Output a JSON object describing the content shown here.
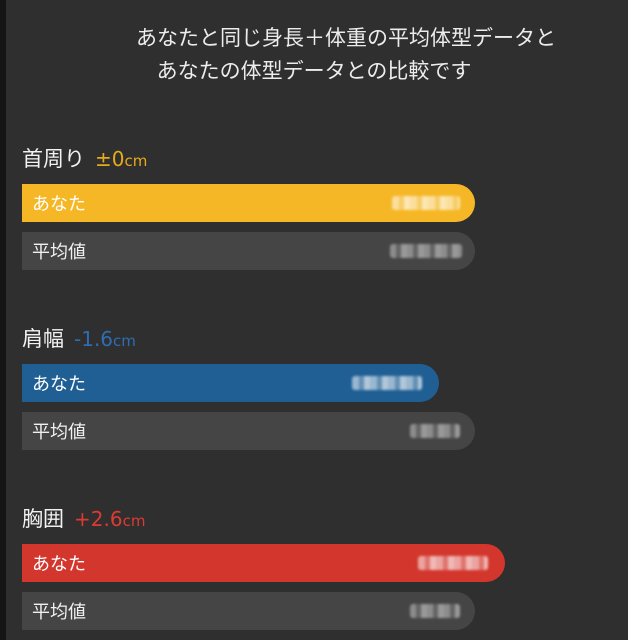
{
  "header": {
    "line1": "あなたと同じ身長＋体重の平均体型データと",
    "line2": "あなたの体型データとの比較です"
  },
  "colors": {
    "yellow": "#f5b725",
    "blue": "#1f5f94",
    "red": "#d3362d",
    "avg_bar": "#454545",
    "diff_yellow": "#e8a91a",
    "diff_blue": "#2e6db0",
    "diff_red": "#de3a34"
  },
  "metrics": [
    {
      "name": "首周り",
      "diff_value": "±0",
      "unit": "cm",
      "you_label": "あなた",
      "avg_label": "平均値"
    },
    {
      "name": "肩幅",
      "diff_value": "-1.6",
      "unit": "cm",
      "you_label": "あなた",
      "avg_label": "平均値"
    },
    {
      "name": "胸囲",
      "diff_value": "+2.6",
      "unit": "cm",
      "you_label": "あなた",
      "avg_label": "平均値"
    }
  ]
}
